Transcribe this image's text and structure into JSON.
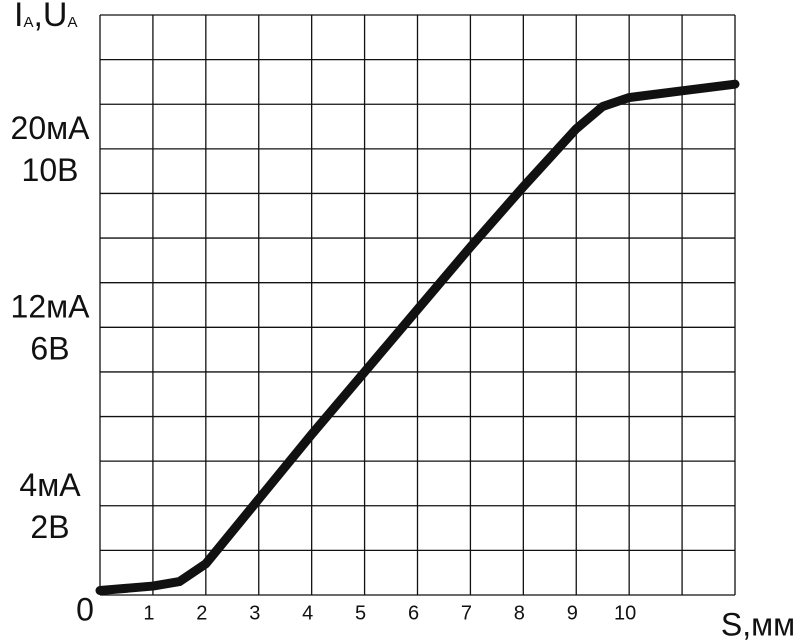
{
  "chart_data": {
    "type": "line",
    "ylabel": [
      "I",
      "A",
      ",U",
      "A"
    ],
    "xlabel": "S,мм",
    "x": [
      0,
      1,
      1.5,
      2,
      3,
      4,
      5,
      6,
      7,
      8,
      9,
      9.5,
      10,
      11,
      12
    ],
    "series": [
      {
        "color": "#111111",
        "values": [
          0.2,
          0.4,
          0.6,
          1.4,
          4.3,
          7.2,
          10,
          12.8,
          15.6,
          18.3,
          20.9,
          21.9,
          22.3,
          22.6,
          22.9
        ]
      }
    ],
    "xlim": [
      0,
      12
    ],
    "xticks": [
      0,
      1,
      2,
      3,
      4,
      5,
      6,
      7,
      8,
      9,
      10,
      {
        "value": 11,
        "label": null
      },
      {
        "value": 12,
        "label": null
      }
    ],
    "ylim": [
      0,
      26
    ],
    "yticks": [
      {
        "value": 0,
        "label": null
      },
      {
        "value": 2,
        "label": null
      },
      {
        "value": 4,
        "label": "4мА\n2В"
      },
      {
        "value": 6,
        "label": null
      },
      {
        "value": 8,
        "label": null
      },
      {
        "value": 10,
        "label": null
      },
      {
        "value": 12,
        "label": "12мА\n6В"
      },
      {
        "value": 14,
        "label": null
      },
      {
        "value": 16,
        "label": null
      },
      {
        "value": 18,
        "label": null
      },
      {
        "value": 20,
        "label": "20мА\n10В"
      },
      {
        "value": 22,
        "label": null
      },
      {
        "value": 24,
        "label": null
      },
      {
        "value": 26,
        "label": null
      }
    ],
    "grid": true
  }
}
